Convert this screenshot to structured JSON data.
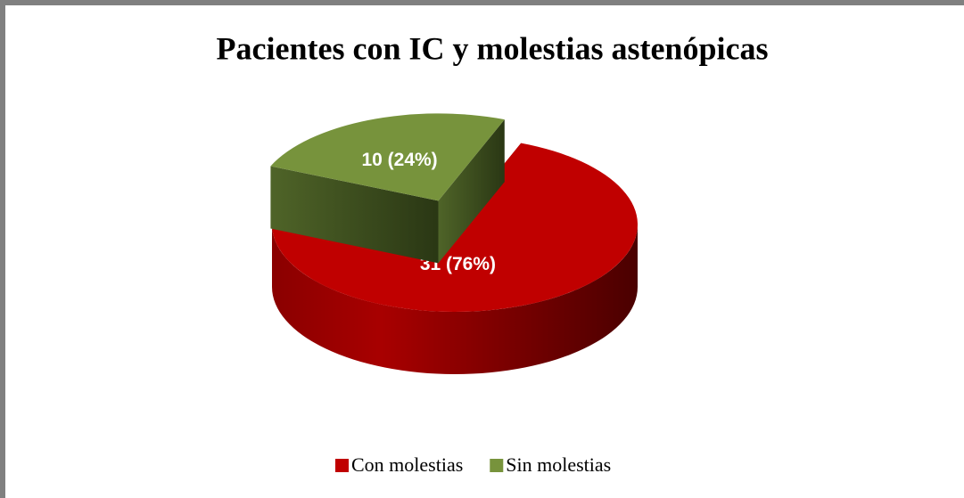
{
  "chart_data": {
    "type": "pie",
    "title": "Pacientes con IC y molestias astenópicas",
    "categories": [
      "Con molestias",
      "Sin molestias"
    ],
    "values": [
      31,
      10
    ],
    "value_labels": [
      "31 (76%)",
      "10 (24%)"
    ],
    "colors": [
      "#c00000",
      "#77933c"
    ],
    "legend": "bottom"
  }
}
